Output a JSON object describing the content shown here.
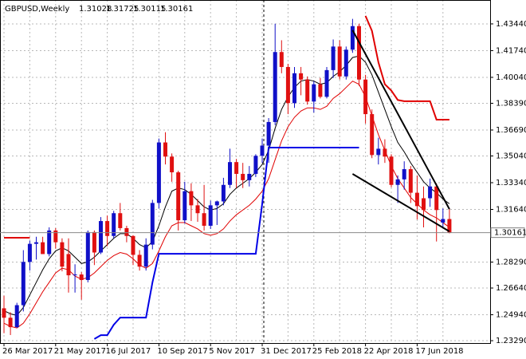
{
  "chart_data": {
    "type": "candlestick",
    "title": "GBPUSD,Weekly",
    "categories": [
      "26 Mar 2017",
      null,
      null,
      null,
      null,
      null,
      null,
      null,
      "21 May 2017",
      null,
      null,
      null,
      null,
      null,
      null,
      null,
      "16 Jul 2017",
      null,
      null,
      null,
      null,
      null,
      null,
      null,
      "10 Sep 2017",
      null,
      null,
      null,
      null,
      null,
      null,
      null,
      "5 Nov 2017",
      null,
      null,
      null,
      null,
      null,
      null,
      null,
      "31 Dec 2017",
      null,
      null,
      null,
      null,
      null,
      null,
      null,
      "25 Feb 2018",
      null,
      null,
      null,
      null,
      null,
      null,
      null,
      "22 Apr 2018",
      null,
      null,
      null,
      null,
      null,
      null,
      null,
      "17 Jun 2018",
      null,
      null,
      null,
      null,
      null
    ],
    "open": [
      1.2535,
      1.2475,
      1.2415,
      1.2555,
      1.283,
      1.2945,
      1.2955,
      1.288,
      1.303,
      1.2955,
      1.288,
      1.2745,
      1.275,
      1.2715,
      1.302,
      1.289,
      1.309,
      1.2995,
      1.314,
      1.3045,
      1.2995,
      1.2875,
      1.28,
      1.294,
      1.3205,
      1.359,
      1.35,
      1.34,
      1.3095,
      1.328,
      1.319,
      1.314,
      1.306,
      1.319,
      1.3215,
      1.332,
      1.3465,
      1.339,
      1.335,
      1.339,
      1.3505,
      1.357,
      1.372,
      1.4165,
      1.407,
      1.384,
      1.403,
      1.399,
      1.385,
      1.396,
      1.388,
      1.405,
      1.42,
      1.401,
      1.418,
      1.433,
      1.399,
      1.377,
      1.351,
      1.355,
      1.35,
      1.332,
      1.3355,
      1.342,
      1.327,
      1.3235,
      1.3235,
      1.331,
      1.308,
      1.31028
    ],
    "high": [
      1.2615,
      1.251,
      1.257,
      1.2905,
      1.2965,
      1.299,
      1.299,
      1.305,
      1.3045,
      1.298,
      1.298,
      1.2815,
      1.2765,
      1.303,
      1.303,
      1.3115,
      1.3125,
      1.3155,
      1.3205,
      1.306,
      1.3,
      1.2905,
      1.298,
      1.3225,
      1.3615,
      1.3655,
      1.352,
      1.341,
      1.334,
      1.333,
      1.323,
      1.332,
      1.322,
      1.322,
      1.3365,
      1.355,
      1.3485,
      1.346,
      1.344,
      1.3515,
      1.3615,
      1.3745,
      1.4345,
      1.424,
      1.409,
      1.407,
      1.407,
      1.401,
      1.398,
      1.4,
      1.407,
      1.4245,
      1.424,
      1.42,
      1.4376,
      1.4345,
      1.402,
      1.38,
      1.362,
      1.361,
      1.3515,
      1.338,
      1.347,
      1.344,
      1.338,
      1.331,
      1.336,
      1.333,
      1.317,
      1.31725
    ],
    "low": [
      1.2377,
      1.2365,
      1.241,
      1.2515,
      1.2775,
      1.2845,
      1.288,
      1.2865,
      1.2915,
      1.277,
      1.2635,
      1.2635,
      1.259,
      1.27,
      1.281,
      1.288,
      1.293,
      1.298,
      1.303,
      1.2955,
      1.281,
      1.2775,
      1.2775,
      1.291,
      1.317,
      1.345,
      1.334,
      1.303,
      1.3075,
      1.309,
      1.3085,
      1.303,
      1.304,
      1.3065,
      1.319,
      1.33,
      1.33,
      1.33,
      1.331,
      1.337,
      1.346,
      1.346,
      1.37,
      1.403,
      1.377,
      1.381,
      1.389,
      1.383,
      1.378,
      1.387,
      1.387,
      1.4,
      1.399,
      1.399,
      1.416,
      1.395,
      1.371,
      1.349,
      1.345,
      1.346,
      1.3305,
      1.3205,
      1.329,
      1.3205,
      1.31,
      1.305,
      1.318,
      1.296,
      1.305,
      1.30115
    ],
    "close": [
      1.2475,
      1.2415,
      1.2555,
      1.283,
      1.2945,
      1.2955,
      1.288,
      1.303,
      1.2955,
      1.28,
      1.2745,
      1.275,
      1.2715,
      1.302,
      1.289,
      1.309,
      1.2995,
      1.314,
      1.3045,
      1.2995,
      1.2875,
      1.28,
      1.294,
      1.3205,
      1.359,
      1.35,
      1.34,
      1.3095,
      1.328,
      1.319,
      1.314,
      1.306,
      1.319,
      1.3215,
      1.332,
      1.3465,
      1.339,
      1.335,
      1.339,
      1.3505,
      1.357,
      1.372,
      1.4165,
      1.407,
      1.384,
      1.403,
      1.399,
      1.385,
      1.396,
      1.388,
      1.405,
      1.42,
      1.401,
      1.418,
      1.433,
      1.399,
      1.377,
      1.351,
      1.355,
      1.35,
      1.332,
      1.3355,
      1.342,
      1.327,
      1.3185,
      1.316,
      1.331,
      1.316,
      1.3103,
      1.30161
    ],
    "up_color": "#1010c8",
    "down_color": "#e01010",
    "overlays": [
      {
        "color": "#000000",
        "width": 1,
        "values": [
          1.252,
          1.25,
          1.249,
          1.254,
          1.262,
          1.27,
          1.278,
          1.285,
          1.29,
          1.292,
          1.29,
          1.286,
          1.282,
          1.283,
          1.286,
          1.29,
          1.294,
          1.298,
          1.301,
          1.301,
          1.298,
          1.294,
          1.292,
          1.296,
          1.306,
          1.318,
          1.328,
          1.33,
          1.329,
          1.326,
          1.322,
          1.318,
          1.316,
          1.317,
          1.32,
          1.326,
          1.33,
          1.333,
          1.336,
          1.34,
          1.345,
          1.354,
          1.368,
          1.38,
          1.388,
          1.394,
          1.398,
          1.399,
          1.398,
          1.396,
          1.397,
          1.401,
          1.404,
          1.408,
          1.413,
          1.414,
          1.41,
          1.402,
          1.391,
          1.38,
          1.369,
          1.359,
          1.353,
          1.346,
          1.34,
          1.334,
          1.33,
          1.327,
          1.323,
          1.32
        ]
      },
      {
        "color": "#e00000",
        "width": 1,
        "values": [
          1.244,
          1.242,
          1.241,
          1.244,
          1.25,
          1.257,
          1.264,
          1.27,
          1.276,
          1.279,
          1.278,
          1.274,
          1.272,
          1.273,
          1.276,
          1.28,
          1.284,
          1.287,
          1.289,
          1.288,
          1.285,
          1.281,
          1.279,
          1.282,
          1.29,
          1.299,
          1.306,
          1.308,
          1.308,
          1.306,
          1.304,
          1.301,
          1.3,
          1.301,
          1.304,
          1.309,
          1.313,
          1.316,
          1.319,
          1.323,
          1.328,
          1.336,
          1.348,
          1.36,
          1.369,
          1.375,
          1.379,
          1.381,
          1.381,
          1.38,
          1.382,
          1.387,
          1.39,
          1.394,
          1.398,
          1.396,
          1.388,
          1.376,
          1.364,
          1.354,
          1.344,
          1.336,
          1.33,
          1.324,
          1.32,
          1.316,
          1.313,
          1.311,
          1.308,
          1.305
        ]
      },
      {
        "color": "#0000e6",
        "width": 2,
        "values": [
          null,
          null,
          null,
          null,
          null,
          null,
          null,
          null,
          null,
          null,
          null,
          null,
          null,
          null,
          1.234,
          1.2364,
          1.2364,
          1.243,
          1.2476,
          1.2476,
          1.2476,
          1.2476,
          1.2476,
          1.27,
          1.2882,
          1.2882,
          1.2882,
          1.2882,
          1.2882,
          1.2882,
          1.2882,
          1.2882,
          1.2882,
          1.2882,
          1.2882,
          1.2882,
          1.2882,
          1.2882,
          1.2882,
          1.2882,
          1.32,
          1.3557,
          1.3557,
          1.3557,
          1.3557,
          1.3557,
          1.3557,
          1.3557,
          1.3557,
          1.3557,
          1.3557,
          1.3557,
          1.3557,
          1.3557,
          1.3557,
          1.3557,
          null,
          null,
          null,
          null,
          null,
          null,
          null,
          null,
          null,
          null,
          null,
          null,
          null,
          null
        ]
      },
      {
        "color": "#e00000",
        "width": 2,
        "values": [
          1.2984,
          1.2984,
          1.2984,
          1.2984,
          1.2984,
          null,
          null,
          null,
          null,
          null,
          null,
          null,
          null,
          null,
          null,
          null,
          null,
          null,
          null,
          null,
          null,
          null,
          null,
          null,
          null,
          null,
          null,
          null,
          null,
          null,
          null,
          null,
          null,
          null,
          null,
          null,
          null,
          null,
          null,
          null,
          null,
          null,
          null,
          null,
          null,
          null,
          null,
          null,
          null,
          null,
          null,
          null,
          null,
          null,
          null,
          null,
          1.4395,
          1.43,
          1.41,
          1.396,
          1.392,
          1.386,
          1.3852,
          1.3852,
          1.3852,
          1.3852,
          1.3852,
          1.3735,
          1.3735,
          1.3735
        ]
      }
    ],
    "trendlines": [
      {
        "x": [
          54,
          69
        ],
        "y": [
          1.4304,
          1.3166
        ],
        "color": "#000000"
      },
      {
        "x": [
          54,
          69
        ],
        "y": [
          1.339,
          1.3024
        ],
        "color": "#000000"
      }
    ],
    "ylim": [
      1.2314,
      1.4496
    ],
    "yticks": [
      {
        "value": 1.4344,
        "label": "1.43440"
      },
      {
        "value": 1.4174,
        "label": "1.41740"
      },
      {
        "value": 1.4004,
        "label": "1.40040"
      },
      {
        "value": 1.3839,
        "label": "1.38390"
      },
      {
        "value": 1.3669,
        "label": "1.36690"
      },
      {
        "value": 1.3504,
        "label": "1.35040"
      },
      {
        "value": 1.3334,
        "label": "1.33340"
      },
      {
        "value": 1.3164,
        "label": "1.31640"
      },
      {
        "value": 1.2829,
        "label": "1.28290"
      },
      {
        "value": 1.2664,
        "label": "1.26640"
      },
      {
        "value": 1.2494,
        "label": "1.24940"
      },
      {
        "value": 1.2329,
        "label": "1.23290"
      }
    ],
    "grid": true
  }
}
